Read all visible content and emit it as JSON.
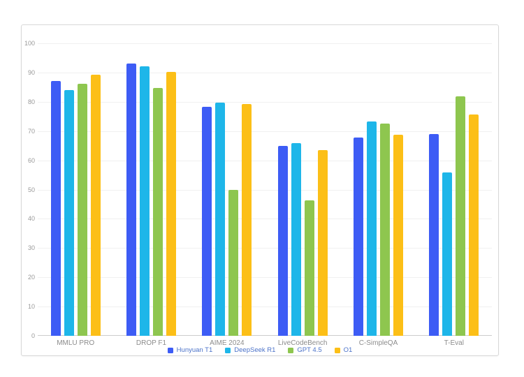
{
  "panel": {
    "background": "#ffffff",
    "border_color": "#d8d8d8"
  },
  "axes": {
    "tick_label_color": "#999999",
    "category_label_color": "#8c8c8c",
    "grid_color": "#f0f0f0",
    "axis_line_color": "#cccccc"
  },
  "legend": {
    "text_color": "#4c73c9",
    "items": [
      "Hunyuan T1",
      "DeepSeek R1",
      "GPT 4.5",
      "O1"
    ]
  },
  "chart_data": {
    "type": "bar",
    "title": "",
    "xlabel": "",
    "ylabel": "",
    "categories": [
      "MMLU PRO",
      "DROP F1",
      "AIME 2024",
      "LiveCodeBench",
      "C-SimpleQA",
      "T-Eval"
    ],
    "series": [
      {
        "name": "Hunyuan T1",
        "color": "#3d5cf5",
        "values": [
          87.2,
          93.1,
          78.2,
          64.9,
          67.9,
          69.0
        ]
      },
      {
        "name": "DeepSeek R1",
        "color": "#1eb6e9",
        "values": [
          84.0,
          92.2,
          79.8,
          65.9,
          73.3,
          55.9
        ]
      },
      {
        "name": "GPT 4.5",
        "color": "#8ec64f",
        "values": [
          86.1,
          84.7,
          50.0,
          46.4,
          72.6,
          81.9
        ]
      },
      {
        "name": "O1",
        "color": "#fcbf17",
        "values": [
          89.3,
          90.2,
          79.2,
          63.4,
          68.8,
          75.7
        ]
      }
    ],
    "ylim": [
      0,
      100
    ],
    "y_ticks": [
      0,
      10,
      20,
      30,
      40,
      50,
      60,
      70,
      80,
      90,
      100
    ],
    "grid": true,
    "legend_position": "bottom"
  }
}
